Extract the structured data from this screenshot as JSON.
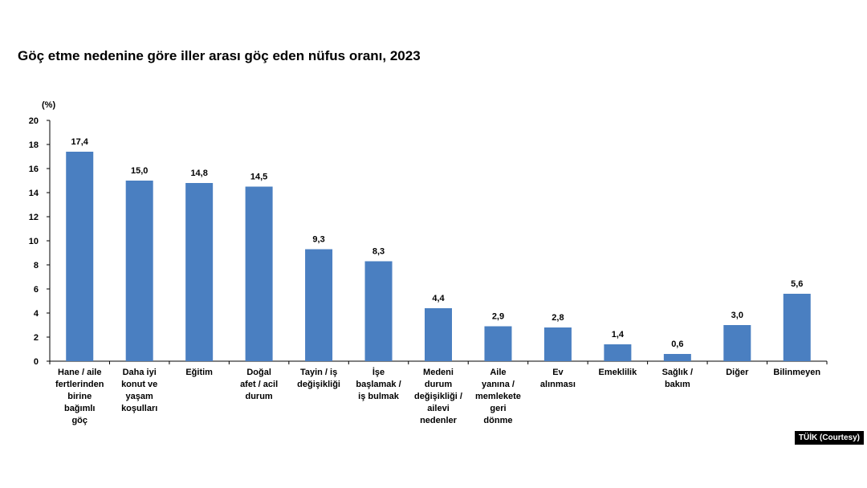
{
  "title": "Göç etme nedenine göre iller arası göç eden nüfus oranı, 2023",
  "credit": "TÜİK (Courtesy)",
  "chart_data": {
    "type": "bar",
    "unit_label": "(%)",
    "ylim": [
      0,
      20
    ],
    "yticks": [
      0,
      2,
      4,
      6,
      8,
      10,
      12,
      14,
      16,
      18,
      20
    ],
    "grid": false,
    "bar_color": "#4a7fc1",
    "categories": [
      [
        "Hane / aile",
        "fertlerinden",
        "birine",
        "bağımlı",
        "göç"
      ],
      [
        "Daha iyi",
        "konut ve",
        "yaşam",
        "koşulları"
      ],
      [
        "Eğitim"
      ],
      [
        "Doğal",
        "afet / acil",
        "durum"
      ],
      [
        "Tayin / iş",
        "değişikliği"
      ],
      [
        "İşe",
        "başlamak /",
        "iş bulmak"
      ],
      [
        "Medeni",
        "durum",
        "değişikliği /",
        "ailevi",
        "nedenler"
      ],
      [
        "Aile",
        "yanına /",
        "memlekete",
        "geri",
        "dönme"
      ],
      [
        "Ev",
        "alınması"
      ],
      [
        "Emeklilik"
      ],
      [
        "Sağlık /",
        "bakım"
      ],
      [
        "Diğer"
      ],
      [
        "Bilinmeyen"
      ]
    ],
    "values": [
      17.4,
      15.0,
      14.8,
      14.5,
      9.3,
      8.3,
      4.4,
      2.9,
      2.8,
      1.4,
      0.6,
      3.0,
      5.6
    ],
    "value_labels": [
      "17,4",
      "15,0",
      "14,8",
      "14,5",
      "9,3",
      "8,3",
      "4,4",
      "2,9",
      "2,8",
      "1,4",
      "0,6",
      "3,0",
      "5,6"
    ]
  }
}
